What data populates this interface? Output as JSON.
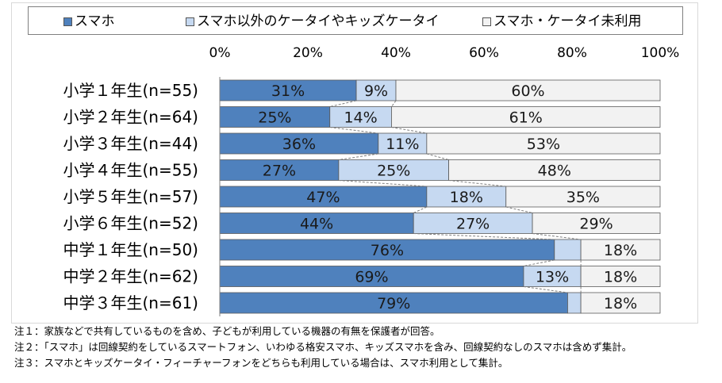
{
  "colors": {
    "smartphone": "#4f81bd",
    "other_phone": "#c6d9f1",
    "none": "#f2f2f2"
  },
  "chart_data": {
    "type": "bar",
    "orientation": "horizontal",
    "stacked": true,
    "percent": true,
    "categories": [
      "小学１年生(n=55)",
      "小学２年生(n=64)",
      "小学３年生(n=44)",
      "小学４年生(n=55)",
      "小学５年生(n=57)",
      "小学６年生(n=52)",
      "中学１年生(n=50)",
      "中学２年生(n=62)",
      "中学３年生(n=61)"
    ],
    "series": [
      {
        "name": "スマホ",
        "values": [
          31,
          25,
          36,
          27,
          47,
          44,
          76,
          69,
          79
        ],
        "labels": [
          "31%",
          "25%",
          "36%",
          "27%",
          "47%",
          "44%",
          "76%",
          "69%",
          "79%"
        ]
      },
      {
        "name": "スマホ以外のケータイやキッズケータイ",
        "values": [
          9,
          14,
          11,
          25,
          18,
          27,
          6,
          13,
          3
        ],
        "labels": [
          "9%",
          "14%",
          "11%",
          "25%",
          "18%",
          "27%",
          "",
          "13%",
          ""
        ]
      },
      {
        "name": "スマホ・ケータイ未利用",
        "values": [
          60,
          61,
          53,
          48,
          35,
          29,
          18,
          18,
          18
        ],
        "labels": [
          "60%",
          "61%",
          "53%",
          "48%",
          "35%",
          "29%",
          "18%",
          "18%",
          "18%"
        ]
      }
    ],
    "xlim": [
      0,
      100
    ],
    "xticks": [
      "0%",
      "20%",
      "40%",
      "60%",
      "80%",
      "100%"
    ],
    "legend": "top",
    "series_lines": true,
    "grid": false
  },
  "notes": [
    "注１：家族などで共有しているものを含め、子どもが利用している機器の有無を保護者が回答。",
    "注２：「スマホ」は回線契約をしているスマートフォン、いわゆる格安スマホ、キッズスマホを含み、回線契約なしのスマホは含めず集計。",
    "注３：スマホとキッズケータイ・フィーチャーフォンをどちらも利用している場合は、スマホ利用として集計。"
  ]
}
